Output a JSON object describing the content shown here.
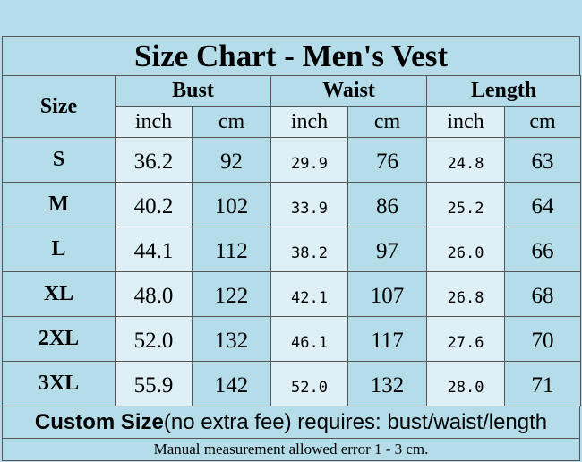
{
  "title": "Size Chart - Men's Vest",
  "header": {
    "size": "Size",
    "groups": [
      "Bust",
      "Waist",
      "Length"
    ],
    "units": [
      "inch",
      "cm",
      "inch",
      "cm",
      "inch",
      "cm"
    ]
  },
  "table": {
    "rows": [
      [
        "S",
        "36.2",
        "92",
        "29.9",
        "76",
        "24.8",
        "63"
      ],
      [
        "M",
        "40.2",
        "102",
        "33.9",
        "86",
        "25.2",
        "64"
      ],
      [
        "L",
        "44.1",
        "112",
        "38.2",
        "97",
        "26.0",
        "66"
      ],
      [
        "XL",
        "48.0",
        "122",
        "42.1",
        "107",
        "26.8",
        "68"
      ],
      [
        "2XL",
        "52.0",
        "132",
        "46.1",
        "117",
        "27.6",
        "70"
      ],
      [
        "3XL",
        "55.9",
        "142",
        "52.0",
        "132",
        "28.0",
        "71"
      ]
    ]
  },
  "custom": {
    "bold": "Custom Size",
    "text": "(no extra fee) requires: bust/waist/length"
  },
  "footer": "Manual measurement allowed error 1 - 3 cm."
}
